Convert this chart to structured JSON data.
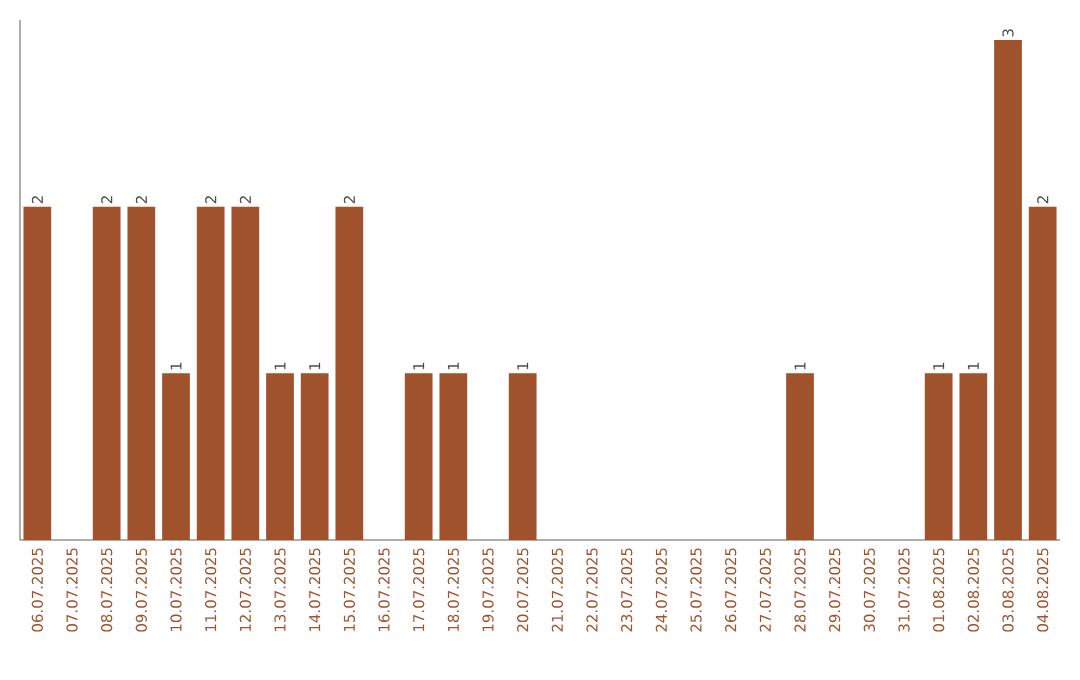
{
  "chart_data": {
    "type": "bar",
    "categories": [
      "06.07.2025",
      "07.07.2025",
      "08.07.2025",
      "09.07.2025",
      "10.07.2025",
      "11.07.2025",
      "12.07.2025",
      "13.07.2025",
      "14.07.2025",
      "15.07.2025",
      "16.07.2025",
      "17.07.2025",
      "18.07.2025",
      "19.07.2025",
      "20.07.2025",
      "21.07.2025",
      "22.07.2025",
      "23.07.2025",
      "24.07.2025",
      "25.07.2025",
      "26.07.2025",
      "27.07.2025",
      "28.07.2025",
      "29.07.2025",
      "30.07.2025",
      "31.07.2025",
      "01.08.2025",
      "02.08.2025",
      "03.08.2025",
      "04.08.2025"
    ],
    "values": [
      2,
      0,
      2,
      2,
      1,
      2,
      2,
      1,
      1,
      2,
      0,
      1,
      1,
      0,
      1,
      0,
      0,
      0,
      0,
      0,
      0,
      0,
      1,
      0,
      0,
      0,
      1,
      1,
      3,
      2
    ],
    "value_labels": [
      "2",
      null,
      "2",
      "2",
      "1",
      "2",
      "2",
      "1",
      "1",
      "2",
      null,
      "1",
      "1",
      null,
      "1",
      null,
      null,
      null,
      null,
      null,
      null,
      null,
      "1",
      null,
      null,
      null,
      "1",
      "1",
      "3",
      "2"
    ],
    "color": "#a0522d"
  }
}
